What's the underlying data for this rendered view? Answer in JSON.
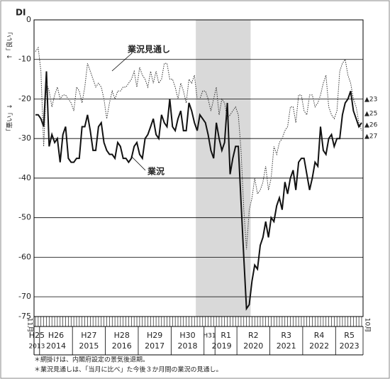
{
  "chart_data": {
    "type": "line",
    "y_label": "DI",
    "y_label_up": "↑「良い」",
    "y_label_down": "「悪い」↓",
    "categories": [
      "11月",
      null,
      null,
      null,
      null,
      null,
      null,
      null,
      null,
      null,
      null,
      null,
      null,
      null,
      null,
      null,
      null,
      null,
      null,
      null,
      null,
      null,
      null,
      null,
      null,
      null,
      null,
      null,
      null,
      null,
      null,
      null,
      null,
      null,
      null,
      null,
      null,
      null,
      null,
      null,
      null,
      null,
      null,
      null,
      null,
      null,
      null,
      null,
      null,
      null,
      null,
      null,
      null,
      null,
      null,
      null,
      null,
      null,
      null,
      null,
      null,
      null,
      null,
      null,
      null,
      null,
      null,
      null,
      null,
      null,
      null,
      null,
      null,
      null,
      null,
      null,
      null,
      null,
      null,
      null,
      null,
      null,
      null,
      null,
      null,
      null,
      null,
      null,
      null,
      null,
      null,
      null,
      null,
      null,
      null,
      null,
      null,
      null,
      null,
      null,
      null,
      null,
      null,
      null,
      null,
      null,
      null,
      null,
      null,
      null,
      null,
      null,
      null,
      null,
      null,
      null,
      null,
      null,
      null,
      "10月"
    ],
    "year_groups": [
      {
        "era": "H25",
        "year": "2013"
      },
      {
        "era": "H26",
        "year": "2014"
      },
      {
        "era": "H27",
        "year": "2015"
      },
      {
        "era": "H28",
        "year": "2016"
      },
      {
        "era": "H29",
        "year": "2017"
      },
      {
        "era": "H30",
        "year": "2018"
      },
      {
        "era": "H31",
        "year": null
      },
      {
        "era": "R1",
        "year": "2019"
      },
      {
        "era": "R2",
        "year": "2020"
      },
      {
        "era": "R3",
        "year": "2021"
      },
      {
        "era": "R4",
        "year": "2022"
      },
      {
        "era": "R5",
        "year": "2023"
      }
    ],
    "series": [
      {
        "name": "業況",
        "color": "#111111",
        "style": "solid",
        "values": [
          -24,
          -24,
          -25,
          -27,
          -13,
          -32,
          -29,
          -31,
          -30,
          -36,
          -29,
          -27,
          -35,
          -36,
          -36,
          -35,
          -35,
          -27,
          -27,
          -24,
          -28,
          -33,
          -33,
          -27,
          -26,
          -31,
          -33,
          -34,
          -34,
          -35,
          -31,
          -32,
          -35,
          -35,
          -36,
          -35,
          -32,
          -31,
          -34,
          -35,
          -30,
          -29,
          -27,
          -25,
          -29,
          -30,
          -24,
          -26,
          -27,
          -20,
          -27,
          -28,
          -25,
          -23,
          -28,
          -28,
          -21,
          -23,
          -26,
          -28,
          -24,
          -25,
          -26,
          -29,
          -33,
          -35,
          -26,
          -30,
          -33,
          -31,
          -21,
          -39,
          -35,
          -32,
          -32,
          -46,
          -60,
          -73,
          -72,
          -66,
          -62,
          -63,
          -57,
          -55,
          -51,
          -55,
          -50,
          -51,
          -47,
          -45,
          -48,
          -41,
          -44,
          -40,
          -38,
          -43,
          -36,
          -35,
          -35,
          -39,
          -43,
          -40,
          -36,
          -37,
          -27,
          -33,
          -34,
          -30,
          -29,
          -32,
          -30,
          -30,
          -24,
          -21,
          -20,
          -18,
          -23,
          -25,
          -27,
          -26
        ]
      },
      {
        "name": "業況見通し",
        "color": "#333333",
        "style": "dotted",
        "values": [
          -8,
          -7,
          -13,
          -32,
          -16,
          -18,
          -22,
          -19,
          -17,
          -20,
          -19,
          -19,
          -20,
          -21,
          -23,
          -17,
          -18,
          -21,
          -17,
          -11,
          -13,
          -15,
          -17,
          -16,
          -17,
          -20,
          -25,
          -21,
          -18,
          -20,
          -18,
          -18,
          -17,
          -17,
          -16,
          -15,
          -13,
          -17,
          -12,
          -14,
          -15,
          -17,
          -13,
          -16,
          -13,
          -16,
          -15,
          -11,
          -11,
          -15,
          -15,
          -17,
          -20,
          -16,
          -18,
          -21,
          -15,
          -16,
          -14,
          -20,
          -20,
          -18,
          -18,
          -20,
          -23,
          -20,
          -17,
          -24,
          -20,
          -21,
          -25,
          -24,
          -23,
          -22,
          -24,
          -33,
          -48,
          -58,
          -48,
          -45,
          -40,
          -44,
          -43,
          -41,
          -37,
          -43,
          -40,
          -32,
          -34,
          -31,
          -30,
          -28,
          -27,
          -22,
          -22,
          -26,
          -19,
          -19,
          -23,
          -24,
          -19,
          -19,
          -22,
          -21,
          -19,
          -16,
          -14,
          -22,
          -24,
          -25,
          -23,
          -13,
          -11,
          -10,
          -14,
          -16,
          -20,
          -22,
          -26,
          -28
        ]
      }
    ],
    "ylim": [
      -75,
      0
    ],
    "yticks": [
      0,
      -10,
      -20,
      -30,
      -40,
      -50,
      -60,
      -70,
      -75
    ],
    "grid": true,
    "annotations": [
      "▲23",
      "▲25",
      "▲26",
      "▲27"
    ],
    "notes": [
      "＊網掛けは、内閣府設定の景気後退期。",
      "＊業況見通しは、「当月に比べ」た今後３か月間の業況の見通し。"
    ]
  }
}
